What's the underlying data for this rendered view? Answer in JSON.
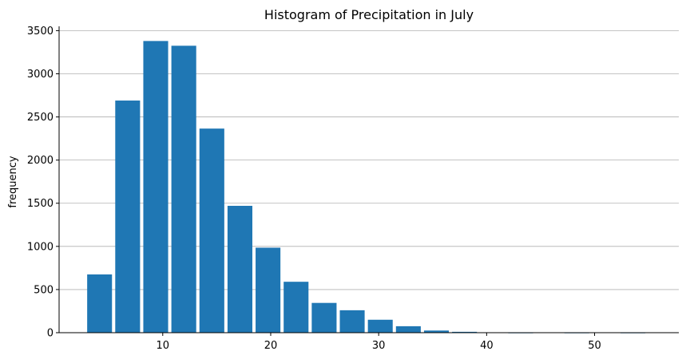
{
  "chart_data": {
    "type": "bar",
    "title": "Histogram of Precipitation in July",
    "xlabel": "",
    "ylabel": "frequency",
    "bins": [
      {
        "x0": 3.0,
        "x1": 5.3,
        "value": 675
      },
      {
        "x0": 5.6,
        "x1": 7.9,
        "value": 2690
      },
      {
        "x0": 8.2,
        "x1": 10.5,
        "value": 3380
      },
      {
        "x0": 10.8,
        "x1": 13.1,
        "value": 3325
      },
      {
        "x0": 13.4,
        "x1": 15.7,
        "value": 2365
      },
      {
        "x0": 16.0,
        "x1": 18.3,
        "value": 1470
      },
      {
        "x0": 18.6,
        "x1": 20.9,
        "value": 985
      },
      {
        "x0": 21.2,
        "x1": 23.5,
        "value": 590
      },
      {
        "x0": 23.8,
        "x1": 26.1,
        "value": 345
      },
      {
        "x0": 26.4,
        "x1": 28.7,
        "value": 260
      },
      {
        "x0": 29.0,
        "x1": 31.3,
        "value": 150
      },
      {
        "x0": 31.6,
        "x1": 33.9,
        "value": 75
      },
      {
        "x0": 34.2,
        "x1": 36.5,
        "value": 25
      },
      {
        "x0": 36.8,
        "x1": 39.1,
        "value": 10
      },
      {
        "x0": 39.4,
        "x1": 41.7,
        "value": 3
      },
      {
        "x0": 42.0,
        "x1": 44.3,
        "value": 1
      },
      {
        "x0": 44.6,
        "x1": 46.9,
        "value": 0
      },
      {
        "x0": 47.2,
        "x1": 49.5,
        "value": 1
      },
      {
        "x0": 49.8,
        "x1": 52.1,
        "value": 0
      },
      {
        "x0": 52.4,
        "x1": 54.7,
        "value": 1
      }
    ],
    "xlim": [
      0.4,
      57.8
    ],
    "ylim": [
      0,
      3550
    ],
    "xticks": [
      10,
      20,
      30,
      40,
      50
    ],
    "yticks": [
      0,
      500,
      1000,
      1500,
      2000,
      2500,
      3000,
      3500
    ],
    "grid": {
      "y": true,
      "x": false
    },
    "colors": {
      "bar": "#1f77b4",
      "grid": "#b0b0b0",
      "axis": "#000000"
    }
  }
}
